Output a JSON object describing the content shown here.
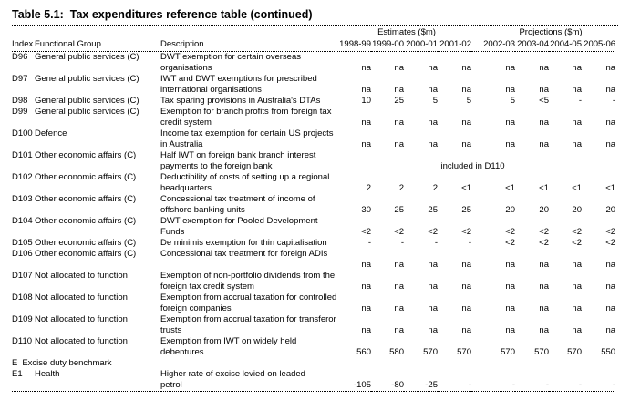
{
  "title": {
    "prefix": "Table 5.1:",
    "text": "Tax expenditures reference table (continued)"
  },
  "table": {
    "group_headers": {
      "estimates": "Estimates ($m)",
      "projections": "Projections ($m)"
    },
    "columns": {
      "index": "Index",
      "group": "Functional Group",
      "description": "Description",
      "years": [
        "1998-99",
        "1999-00",
        "2000-01",
        "2001-02",
        "2002-03",
        "2003-04",
        "2004-05",
        "2005-06"
      ]
    },
    "rows": [
      {
        "index": "D96",
        "group": "General public services (C)",
        "desc": [
          "DWT exemption for certain overseas",
          "organisations"
        ],
        "values": [
          "na",
          "na",
          "na",
          "na",
          "na",
          "na",
          "na",
          "na"
        ]
      },
      {
        "index": "D97",
        "group": "General public services (C)",
        "desc": [
          "IWT and DWT exemptions for prescribed",
          "international organisations"
        ],
        "values": [
          "na",
          "na",
          "na",
          "na",
          "na",
          "na",
          "na",
          "na"
        ]
      },
      {
        "index": "D98",
        "group": "General public services (C)",
        "desc": [
          "Tax sparing provisions in Australia's DTAs"
        ],
        "values": [
          "10",
          "25",
          "5",
          "5",
          "5",
          "<5",
          "-",
          "-"
        ]
      },
      {
        "index": "D99",
        "group": "General public services (C)",
        "desc": [
          "Exemption for branch profits from foreign tax",
          "credit system"
        ],
        "values": [
          "na",
          "na",
          "na",
          "na",
          "na",
          "na",
          "na",
          "na"
        ]
      },
      {
        "index": "D100",
        "group": "Defence",
        "desc": [
          "Income tax exemption for certain US projects",
          "in Australia"
        ],
        "values": [
          "na",
          "na",
          "na",
          "na",
          "na",
          "na",
          "na",
          "na"
        ]
      },
      {
        "index": "D101",
        "group": "Other economic affairs (C)",
        "desc": [
          "Half IWT on foreign bank branch interest",
          "payments to the foreign bank"
        ],
        "note": "included in D110"
      },
      {
        "index": "D102",
        "group": "Other economic affairs (C)",
        "desc": [
          "Deductibility of costs of setting up a regional",
          "headquarters"
        ],
        "values": [
          "2",
          "2",
          "2",
          "<1",
          "<1",
          "<1",
          "<1",
          "<1"
        ]
      },
      {
        "index": "D103",
        "group": "Other economic affairs (C)",
        "desc": [
          "Concessional tax treatment of income of",
          "offshore banking units"
        ],
        "values": [
          "30",
          "25",
          "25",
          "25",
          "20",
          "20",
          "20",
          "20"
        ]
      },
      {
        "index": "D104",
        "group": "Other economic affairs (C)",
        "desc": [
          "DWT exemption for Pooled Development",
          "Funds"
        ],
        "values": [
          "<2",
          "<2",
          "<2",
          "<2",
          "<2",
          "<2",
          "<2",
          "<2"
        ]
      },
      {
        "index": "D105",
        "group": "Other economic affairs (C)",
        "desc": [
          "De minimis exemption for thin capitalisation"
        ],
        "values": [
          "-",
          "-",
          "-",
          "-",
          "<2",
          "<2",
          "<2",
          "<2"
        ]
      },
      {
        "index": "D106",
        "group": "Other economic affairs (C)",
        "desc": [
          "Concessional tax treatment for foreign ADIs",
          ""
        ],
        "values": [
          "na",
          "na",
          "na",
          "na",
          "na",
          "na",
          "na",
          "na"
        ]
      },
      {
        "index": "D107",
        "group": "Not allocated to function",
        "desc": [
          "Exemption of non-portfolio dividends from the",
          "foreign tax credit system"
        ],
        "values": [
          "na",
          "na",
          "na",
          "na",
          "na",
          "na",
          "na",
          "na"
        ]
      },
      {
        "index": "D108",
        "group": "Not allocated to function",
        "desc": [
          "Exemption from accrual taxation for controlled",
          "foreign companies"
        ],
        "values": [
          "na",
          "na",
          "na",
          "na",
          "na",
          "na",
          "na",
          "na"
        ]
      },
      {
        "index": "D109",
        "group": "Not allocated to function",
        "desc": [
          "Exemption from accrual taxation for transferor",
          "trusts"
        ],
        "values": [
          "na",
          "na",
          "na",
          "na",
          "na",
          "na",
          "na",
          "na"
        ]
      },
      {
        "index": "D110",
        "group": "Not allocated to function",
        "desc": [
          "Exemption from IWT on widely held",
          "debentures"
        ],
        "values": [
          "560",
          "580",
          "570",
          "570",
          "570",
          "570",
          "570",
          "550"
        ]
      },
      {
        "type": "section",
        "index": "E",
        "label": "Excise duty benchmark"
      },
      {
        "index": "E1",
        "group": "Health",
        "desc": [
          "Higher rate of excise levied on leaded",
          "petrol"
        ],
        "values": [
          "-105",
          "-80",
          "-25",
          "-",
          "-",
          "-",
          "-",
          "-"
        ]
      }
    ]
  },
  "colors": {
    "text": "#000000",
    "background": "#ffffff",
    "rule": "#000000"
  }
}
